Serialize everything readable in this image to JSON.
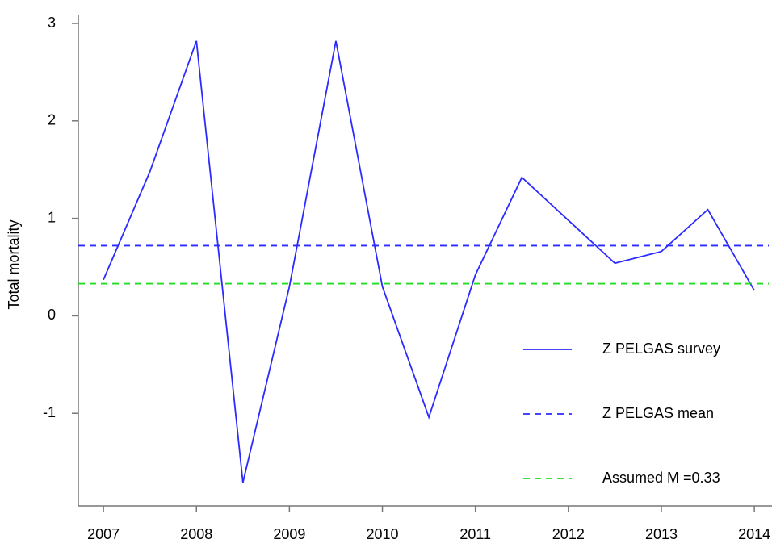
{
  "chart_data": {
    "type": "line",
    "y_label": "Total mortality",
    "xlim": [
      2006.73,
      2014.19
    ],
    "xticks": [
      2007,
      2008,
      2009,
      2010,
      2011,
      2012,
      2013,
      2014
    ],
    "ylim": [
      -1.95,
      3.0
    ],
    "yticks": [
      -1,
      0,
      1,
      2,
      3
    ],
    "series": [
      {
        "name": "Z PELGAS survey",
        "color": "#2b2bff",
        "style": "solid",
        "x": [
          2007,
          2007.5,
          2008,
          2008.5,
          2009,
          2009.5,
          2010,
          2010.5,
          2011,
          2011.5,
          2012,
          2012.5,
          2013,
          2013.5,
          2014
        ],
        "values": [
          0.37,
          1.48,
          2.82,
          -1.71,
          0.3,
          2.82,
          0.3,
          -1.04,
          0.42,
          1.42,
          0.98,
          0.54,
          0.66,
          1.09,
          0.26
        ]
      },
      {
        "name": "Z PELGAS mean",
        "color": "#2b2bff",
        "style": "dashed",
        "level": 0.72
      },
      {
        "name": "Assumed M =0.33",
        "color": "#22dd22",
        "style": "dashed",
        "level": 0.33
      }
    ]
  }
}
